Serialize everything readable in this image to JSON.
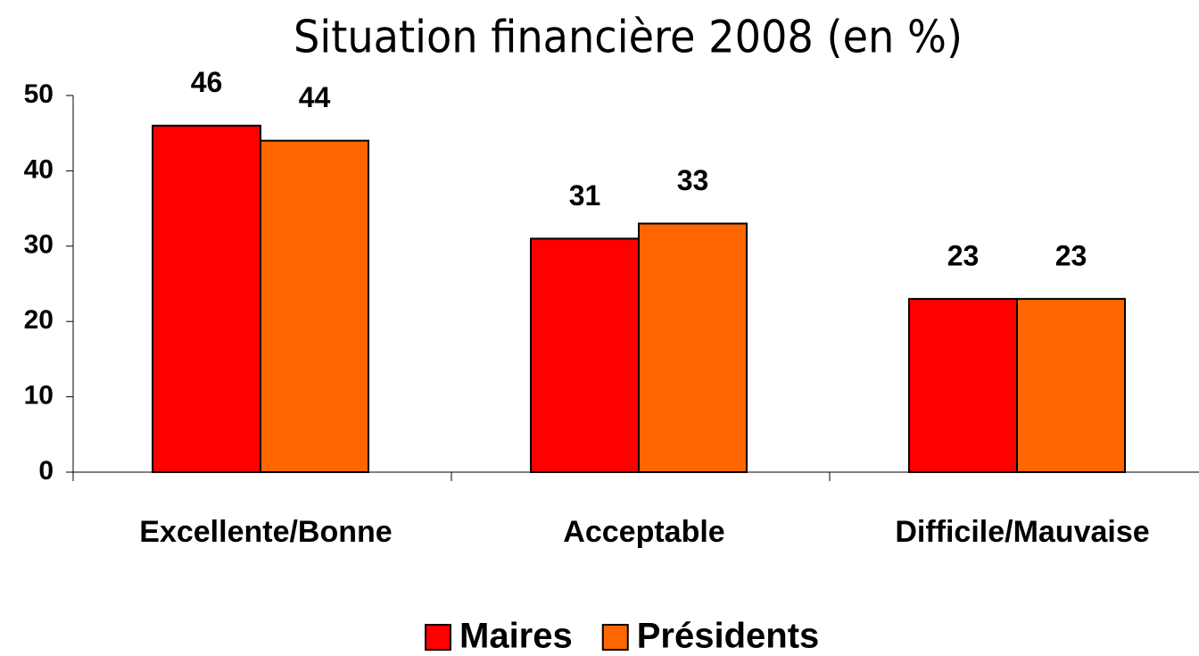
{
  "chart_data": {
    "type": "bar",
    "title": "Situation financière 2008 (en %)",
    "categories": [
      "Excellente/Bonne",
      "Acceptable",
      "Difficile/Mauvaise"
    ],
    "series": [
      {
        "name": "Maires",
        "color": "#ff0000",
        "values": [
          46,
          31,
          23
        ]
      },
      {
        "name": "Présidents",
        "color": "#ff6600",
        "values": [
          44,
          33,
          23
        ]
      }
    ],
    "ylim": [
      0,
      50
    ],
    "yticks": [
      0,
      10,
      20,
      30,
      40,
      50
    ],
    "grid": false,
    "legend": "bottom"
  }
}
